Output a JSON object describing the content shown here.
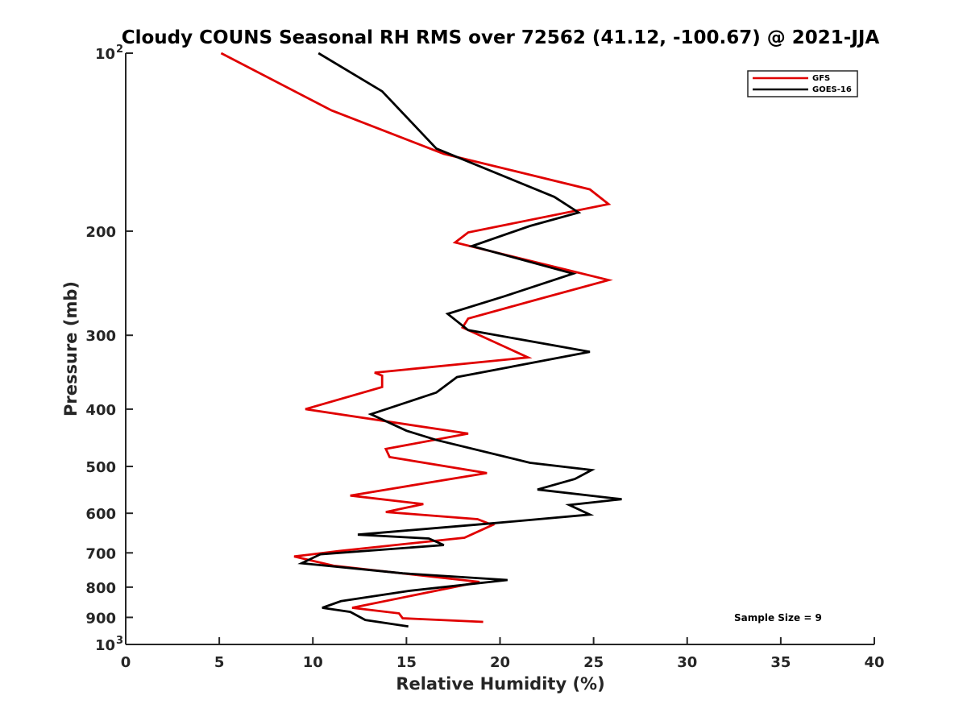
{
  "chart_data": {
    "type": "line",
    "title": "Cloudy COUNS Seasonal RH RMS over 72562 (41.12, -100.67) @ 2021-JJA",
    "xlabel": "Relative Humidity (%)",
    "ylabel": "Pressure (mb)",
    "xlim": [
      0,
      40
    ],
    "ylim": [
      100,
      1000
    ],
    "yscale": "log",
    "y_inverted": true,
    "grid": false,
    "legend_location": "top-right",
    "x_ticks": [
      "0",
      "5",
      "10",
      "15",
      "20",
      "25",
      "30",
      "35",
      "40"
    ],
    "y_ticks": [
      {
        "value": 100,
        "label": "10",
        "sup": "2"
      },
      {
        "value": 200,
        "label": "200",
        "sup": ""
      },
      {
        "value": 300,
        "label": "300",
        "sup": ""
      },
      {
        "value": 400,
        "label": "400",
        "sup": ""
      },
      {
        "value": 500,
        "label": "500",
        "sup": ""
      },
      {
        "value": 600,
        "label": "600",
        "sup": ""
      },
      {
        "value": 700,
        "label": "700",
        "sup": ""
      },
      {
        "value": 800,
        "label": "800",
        "sup": ""
      },
      {
        "value": 900,
        "label": "900",
        "sup": ""
      },
      {
        "value": 1000,
        "label": "10",
        "sup": "3"
      }
    ],
    "series": [
      {
        "name": "GFS",
        "color": "#e00000",
        "points": [
          [
            5.1,
            100
          ],
          [
            11.0,
            125
          ],
          [
            17.0,
            148
          ],
          [
            24.8,
            170
          ],
          [
            25.8,
            180
          ],
          [
            18.3,
            201
          ],
          [
            17.6,
            209
          ],
          [
            25.8,
            242
          ],
          [
            21.8,
            262
          ],
          [
            18.3,
            281
          ],
          [
            18.0,
            291
          ],
          [
            21.5,
            327
          ],
          [
            13.3,
            347
          ],
          [
            13.7,
            351
          ],
          [
            13.7,
            367
          ],
          [
            9.6,
            400
          ],
          [
            18.3,
            440
          ],
          [
            13.9,
            467
          ],
          [
            14.1,
            482
          ],
          [
            19.3,
            513
          ],
          [
            12.0,
            560
          ],
          [
            15.9,
            579
          ],
          [
            13.9,
            597
          ],
          [
            18.8,
            614
          ],
          [
            19.6,
            628
          ],
          [
            18.1,
            660
          ],
          [
            11.4,
            695
          ],
          [
            9.0,
            710
          ],
          [
            11.1,
            736
          ],
          [
            18.9,
            784
          ],
          [
            12.1,
            867
          ],
          [
            14.6,
            886
          ],
          [
            14.8,
            903
          ],
          [
            19.1,
            916
          ]
        ]
      },
      {
        "name": "GOES-16",
        "color": "#000000",
        "points": [
          [
            10.3,
            100
          ],
          [
            13.7,
            116
          ],
          [
            16.6,
            145
          ],
          [
            22.9,
            175
          ],
          [
            24.2,
            186
          ],
          [
            21.6,
            196
          ],
          [
            18.5,
            212
          ],
          [
            23.9,
            236
          ],
          [
            20.2,
            258
          ],
          [
            17.2,
            276
          ],
          [
            18.3,
            294
          ],
          [
            24.8,
            320
          ],
          [
            17.7,
            353
          ],
          [
            16.6,
            375
          ],
          [
            13.1,
            408
          ],
          [
            15.0,
            435
          ],
          [
            16.6,
            451
          ],
          [
            21.6,
            493
          ],
          [
            24.9,
            507
          ],
          [
            24.0,
            525
          ],
          [
            22.0,
            547
          ],
          [
            26.5,
            568
          ],
          [
            23.7,
            581
          ],
          [
            24.8,
            603
          ],
          [
            19.8,
            623
          ],
          [
            12.4,
            652
          ],
          [
            16.2,
            662
          ],
          [
            17.0,
            679
          ],
          [
            10.4,
            704
          ],
          [
            9.4,
            729
          ],
          [
            14.8,
            758
          ],
          [
            20.4,
            778
          ],
          [
            15.1,
            812
          ],
          [
            11.5,
            845
          ],
          [
            10.5,
            867
          ],
          [
            12.0,
            881
          ],
          [
            12.8,
            909
          ],
          [
            15.1,
            932
          ]
        ]
      }
    ],
    "legend": [
      {
        "label": "GFS",
        "color": "#e00000"
      },
      {
        "label": "GOES-16",
        "color": "#000000"
      }
    ],
    "annotations": [
      "Sample Size = 9"
    ]
  }
}
